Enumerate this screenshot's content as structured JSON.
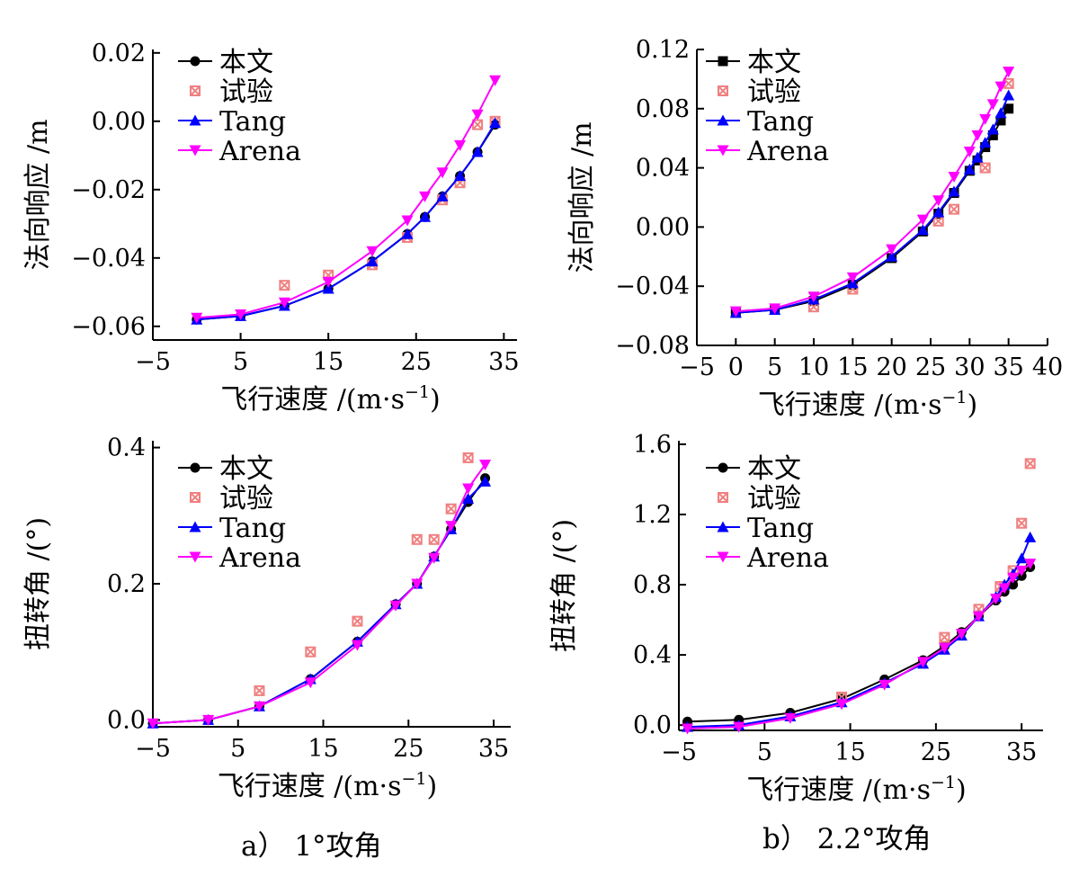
{
  "figure": {
    "captions": [
      "a） 1°攻角",
      "b） 2.2°攻角"
    ]
  },
  "chart_data": [
    {
      "id": "a1",
      "type": "line",
      "column": 0,
      "row": 0,
      "xlabel": "飞行速度 /(m·s",
      "xlabel_sup": "−1",
      "xlabel_close": ")",
      "ylabel": "法向响应 /m",
      "xlim": [
        -5,
        36.5
      ],
      "ylim": [
        -0.064,
        0.021
      ],
      "xticks": [
        -5,
        5,
        15,
        25,
        35
      ],
      "xtick_labels": [
        "−5",
        "5",
        "15",
        "25",
        "35"
      ],
      "yticks": [
        -0.06,
        -0.04,
        -0.02,
        0.0,
        0.02
      ],
      "ytick_labels": [
        "−0.06",
        "−0.04",
        "−0.02",
        "0.00",
        "0.02"
      ],
      "legend": "top-left",
      "series": [
        {
          "name": "本文",
          "color": "#000000",
          "marker": "circle",
          "line": true,
          "x": [
            0,
            5,
            10,
            15,
            20,
            24,
            26,
            28,
            30,
            32,
            34
          ],
          "y": [
            -0.058,
            -0.057,
            -0.054,
            -0.049,
            -0.041,
            -0.033,
            -0.028,
            -0.022,
            -0.016,
            -0.009,
            -0.001
          ]
        },
        {
          "name": "试验",
          "color": "#f08080",
          "marker": "crossbox",
          "line": false,
          "x": [
            10,
            15,
            20,
            24,
            28,
            30,
            32,
            34
          ],
          "y": [
            -0.048,
            -0.045,
            -0.042,
            -0.034,
            -0.023,
            -0.018,
            -0.001,
            0.0
          ]
        },
        {
          "name": "Tang",
          "color": "#0000ff",
          "marker": "triangle-up",
          "line": true,
          "x": [
            0,
            5,
            10,
            15,
            20,
            24,
            26,
            28,
            30,
            32,
            34
          ],
          "y": [
            -0.058,
            -0.057,
            -0.054,
            -0.049,
            -0.041,
            -0.033,
            -0.028,
            -0.022,
            -0.016,
            -0.009,
            -0.0005
          ]
        },
        {
          "name": "Arena",
          "color": "#ff00ff",
          "marker": "triangle-down",
          "line": true,
          "x": [
            0,
            5,
            10,
            15,
            20,
            24,
            26,
            28,
            30,
            32,
            34
          ],
          "y": [
            -0.0575,
            -0.0565,
            -0.053,
            -0.047,
            -0.038,
            -0.029,
            -0.022,
            -0.015,
            -0.007,
            0.002,
            0.012
          ]
        }
      ]
    },
    {
      "id": "b1",
      "type": "line",
      "column": 1,
      "row": 0,
      "xlabel": "飞行速度 /(m·s",
      "xlabel_sup": "−1",
      "xlabel_close": ")",
      "ylabel": "法向响应 /m",
      "xlim": [
        -5,
        40
      ],
      "ylim": [
        -0.08,
        0.12
      ],
      "xticks": [
        -5,
        0,
        5,
        10,
        15,
        20,
        25,
        30,
        35,
        40
      ],
      "xtick_labels": [
        "−5",
        "0",
        "5",
        "10",
        "15",
        "20",
        "25",
        "30",
        "35",
        "40"
      ],
      "yticks": [
        -0.08,
        -0.04,
        0.0,
        0.04,
        0.08,
        0.12
      ],
      "ytick_labels": [
        "−0.08",
        "−0.04",
        "0.00",
        "0.04",
        "0.08",
        "0.12"
      ],
      "legend": "top-left",
      "series": [
        {
          "name": "本文",
          "color": "#000000",
          "marker": "square",
          "line": true,
          "x": [
            0,
            5,
            10,
            15,
            20,
            24,
            26,
            28,
            30,
            31,
            32,
            33,
            34,
            35
          ],
          "y": [
            -0.058,
            -0.056,
            -0.05,
            -0.039,
            -0.021,
            -0.003,
            0.009,
            0.023,
            0.038,
            0.045,
            0.054,
            0.062,
            0.072,
            0.08
          ]
        },
        {
          "name": "试验",
          "color": "#f08080",
          "marker": "crossbox",
          "line": false,
          "x": [
            10,
            15,
            26,
            28,
            32,
            35
          ],
          "y": [
            -0.054,
            -0.042,
            0.004,
            0.012,
            0.04,
            0.097
          ]
        },
        {
          "name": "Tang",
          "color": "#0000ff",
          "marker": "triangle-up",
          "line": true,
          "x": [
            0,
            5,
            10,
            15,
            20,
            24,
            26,
            28,
            30,
            31,
            32,
            33,
            34,
            35
          ],
          "y": [
            -0.058,
            -0.056,
            -0.049,
            -0.038,
            -0.02,
            -0.002,
            0.01,
            0.024,
            0.039,
            0.047,
            0.057,
            0.066,
            0.077,
            0.089
          ]
        },
        {
          "name": "Arena",
          "color": "#ff00ff",
          "marker": "triangle-down",
          "line": true,
          "x": [
            0,
            5,
            10,
            15,
            20,
            24,
            26,
            28,
            30,
            31,
            32,
            33,
            34,
            35
          ],
          "y": [
            -0.057,
            -0.055,
            -0.047,
            -0.034,
            -0.015,
            0.005,
            0.018,
            0.034,
            0.051,
            0.062,
            0.073,
            0.083,
            0.095,
            0.105
          ]
        }
      ]
    },
    {
      "id": "a2",
      "type": "line",
      "column": 0,
      "row": 1,
      "xlabel": "飞行速度 /(m·s",
      "xlabel_sup": "−1",
      "xlabel_close": ")",
      "ylabel": "扭转角 /(°)",
      "xlim": [
        -5,
        37
      ],
      "ylim": [
        -0.01,
        0.41
      ],
      "xticks": [
        -5,
        5,
        15,
        25,
        35
      ],
      "xtick_labels": [
        "−5",
        "5",
        "15",
        "25",
        "35"
      ],
      "yticks": [
        0.0,
        0.2,
        0.4
      ],
      "ytick_labels": [
        "0.0",
        "0.2",
        "0.4"
      ],
      "legend": "top-left",
      "series": [
        {
          "name": "本文",
          "color": "#000000",
          "marker": "circle",
          "line": true,
          "x": [
            -5,
            1.5,
            7.5,
            13.5,
            19,
            23.5,
            26,
            28,
            30,
            32,
            34
          ],
          "y": [
            -0.005,
            0.0,
            0.02,
            0.06,
            0.115,
            0.17,
            0.2,
            0.24,
            0.28,
            0.32,
            0.355
          ]
        },
        {
          "name": "试验",
          "color": "#f08080",
          "marker": "crossbox",
          "line": false,
          "x": [
            7.5,
            13.5,
            19,
            26,
            28,
            30,
            32
          ],
          "y": [
            0.043,
            0.1,
            0.145,
            0.265,
            0.265,
            0.31,
            0.385
          ]
        },
        {
          "name": "Tang",
          "color": "#0000ff",
          "marker": "triangle-up",
          "line": true,
          "x": [
            -5,
            1.5,
            7.5,
            13.5,
            19,
            23.5,
            26,
            28,
            30,
            32,
            34
          ],
          "y": [
            -0.005,
            0.0,
            0.02,
            0.06,
            0.115,
            0.17,
            0.2,
            0.24,
            0.28,
            0.325,
            0.35
          ]
        },
        {
          "name": "Arena",
          "color": "#ff00ff",
          "marker": "triangle-down",
          "line": true,
          "x": [
            -5,
            1.5,
            7.5,
            13.5,
            19,
            23.5,
            26,
            28,
            30,
            32,
            34
          ],
          "y": [
            -0.005,
            0.0,
            0.02,
            0.055,
            0.11,
            0.168,
            0.2,
            0.238,
            0.285,
            0.34,
            0.375
          ]
        }
      ]
    },
    {
      "id": "b2",
      "type": "line",
      "column": 1,
      "row": 1,
      "xlabel": "飞行速度 /(m·s",
      "xlabel_sup": "−1",
      "xlabel_close": ")",
      "ylabel": "扭转角 /(°)",
      "xlim": [
        -5,
        37.5
      ],
      "ylim": [
        -0.03,
        1.62
      ],
      "xticks": [
        -5,
        5,
        15,
        25,
        35
      ],
      "xtick_labels": [
        "−5",
        "5",
        "15",
        "25",
        "35"
      ],
      "yticks": [
        0.0,
        0.4,
        0.8,
        1.2,
        1.6
      ],
      "ytick_labels": [
        "0.0",
        "0.4",
        "0.8",
        "1.2",
        "1.6"
      ],
      "legend": "top-left",
      "series": [
        {
          "name": "本文",
          "color": "#000000",
          "marker": "circle",
          "line": true,
          "x": [
            -4,
            2,
            8,
            14,
            19,
            23.5,
            26,
            28,
            30,
            32,
            33,
            34,
            35,
            36
          ],
          "y": [
            0.02,
            0.03,
            0.07,
            0.15,
            0.26,
            0.37,
            0.45,
            0.53,
            0.62,
            0.71,
            0.76,
            0.8,
            0.85,
            0.9
          ]
        },
        {
          "name": "试验",
          "color": "#f08080",
          "marker": "crossbox",
          "line": false,
          "x": [
            14,
            26,
            30,
            32.5,
            34,
            35,
            36
          ],
          "y": [
            0.16,
            0.5,
            0.66,
            0.79,
            0.88,
            1.15,
            1.49
          ]
        },
        {
          "name": "Tang",
          "color": "#0000ff",
          "marker": "triangle-up",
          "line": true,
          "x": [
            -4,
            2,
            8,
            14,
            19,
            23.5,
            26,
            28,
            30,
            32,
            33,
            34,
            35,
            36
          ],
          "y": [
            -0.01,
            0.0,
            0.05,
            0.13,
            0.24,
            0.35,
            0.43,
            0.51,
            0.62,
            0.73,
            0.8,
            0.86,
            0.95,
            1.07
          ]
        },
        {
          "name": "Arena",
          "color": "#ff00ff",
          "marker": "triangle-down",
          "line": true,
          "x": [
            -4,
            2,
            8,
            14,
            19,
            23.5,
            26,
            28,
            30,
            32,
            33,
            34,
            35,
            36
          ],
          "y": [
            -0.02,
            -0.01,
            0.04,
            0.12,
            0.23,
            0.36,
            0.44,
            0.52,
            0.62,
            0.72,
            0.78,
            0.84,
            0.88,
            0.92
          ]
        }
      ]
    }
  ]
}
